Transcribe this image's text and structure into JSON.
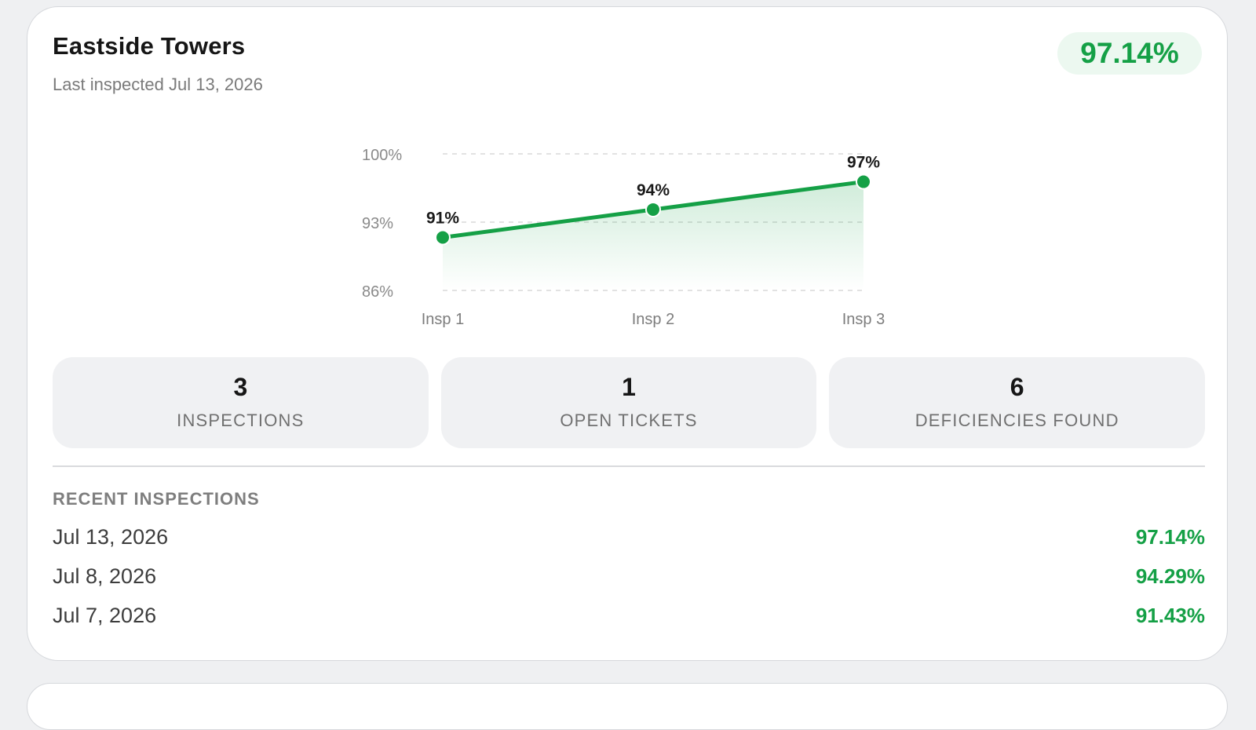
{
  "property": {
    "name": "Eastside Towers",
    "last_inspected": "Last inspected Jul 13, 2026",
    "score": "97.14%"
  },
  "colors": {
    "accent": "#15a046",
    "pill_bg": "#ecf8f0"
  },
  "chart_data": {
    "type": "area",
    "categories": [
      "Insp 1",
      "Insp 2",
      "Insp 3"
    ],
    "values": [
      91.43,
      94.29,
      97.14
    ],
    "data_labels": [
      "91%",
      "94%",
      "97%"
    ],
    "y_ticks": [
      100,
      93,
      86
    ],
    "y_tick_labels": [
      "100%",
      "93%",
      "86%"
    ],
    "ylim": [
      86,
      100
    ],
    "grid": true,
    "title": "",
    "xlabel": "",
    "ylabel": ""
  },
  "stats": [
    {
      "value": "3",
      "label": "INSPECTIONS"
    },
    {
      "value": "1",
      "label": "OPEN TICKETS"
    },
    {
      "value": "6",
      "label": "DEFICIENCIES FOUND"
    }
  ],
  "recent": {
    "heading": "RECENT INSPECTIONS",
    "items": [
      {
        "date": "Jul 13, 2026",
        "score": "97.14%"
      },
      {
        "date": "Jul 8, 2026",
        "score": "94.29%"
      },
      {
        "date": "Jul 7, 2026",
        "score": "91.43%"
      }
    ]
  }
}
